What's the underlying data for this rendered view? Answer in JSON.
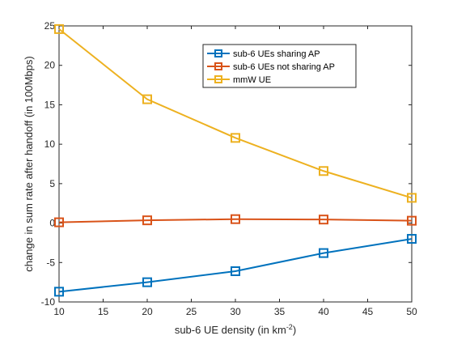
{
  "chart_data": {
    "type": "line",
    "x": [
      10,
      20,
      30,
      40,
      50
    ],
    "series": [
      {
        "name": "sub-6 UEs sharing AP",
        "color": "#0072BD",
        "marker": "square",
        "values": [
          -8.7,
          -7.5,
          -6.1,
          -3.8,
          -2.0
        ]
      },
      {
        "name": "sub-6 UEs not sharing AP",
        "color": "#D95319",
        "marker": "square",
        "values": [
          0.1,
          0.35,
          0.5,
          0.45,
          0.3
        ]
      },
      {
        "name": "mmW UE",
        "color": "#EDB120",
        "marker": "square",
        "values": [
          24.6,
          15.7,
          10.8,
          6.6,
          3.2
        ]
      }
    ],
    "xlim": [
      10,
      50
    ],
    "ylim": [
      -10,
      25
    ],
    "xticks": [
      10,
      15,
      20,
      25,
      30,
      35,
      40,
      45,
      50
    ],
    "yticks": [
      -10,
      -5,
      0,
      5,
      10,
      15,
      20,
      25
    ],
    "xlabel": "sub-6 UE density (in km",
    "xlabel_superscript": "-2",
    "xlabel_suffix": ")",
    "ylabel": "change in sum rate after handoff (in 100Mbps)",
    "grid": false,
    "legend_position": "top-right"
  }
}
